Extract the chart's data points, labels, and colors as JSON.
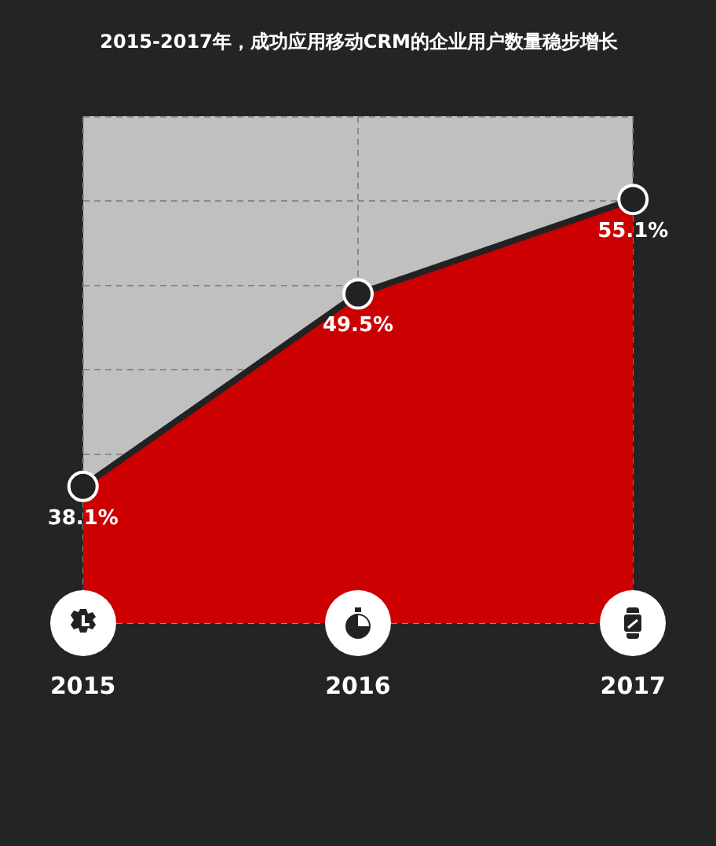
{
  "chart_data": {
    "type": "area",
    "title": "2015-2017年，成功应用移动CRM的企业用户数量稳步增长",
    "categories": [
      "2015",
      "2016",
      "2017"
    ],
    "series": [
      {
        "color": "#cc0000",
        "values": [
          38.1,
          49.5,
          55.1
        ],
        "value_labels": [
          "38.1%",
          "49.5%",
          "55.1%"
        ]
      }
    ],
    "grid": true,
    "legend": false,
    "marker": "circle",
    "tick_labels": "x"
  }
}
